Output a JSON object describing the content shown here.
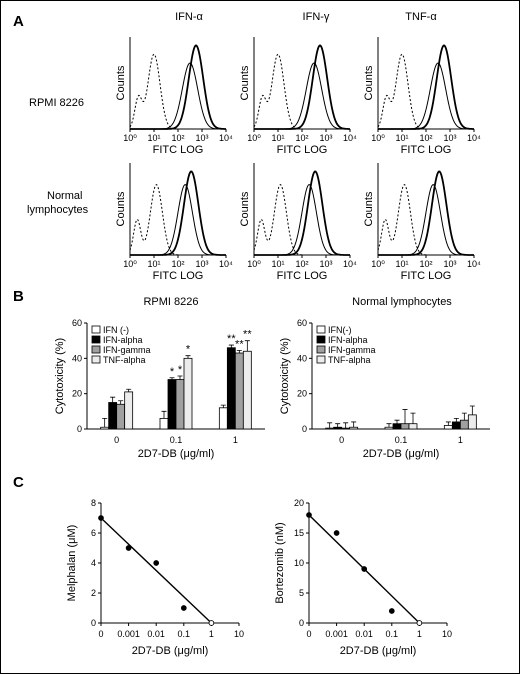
{
  "panels": {
    "a": "A",
    "b": "B",
    "c": "C"
  },
  "histograms": {
    "columns": [
      "IFN-α",
      "IFN-γ",
      "TNF-α"
    ],
    "rows": [
      "RPMI 8226",
      "Normal\nlymphocytes"
    ],
    "ylabel": "Counts",
    "xlabel": "FITC LOG",
    "ticks": [
      "10⁰",
      "10¹",
      "10²",
      "10³",
      "10⁴"
    ]
  },
  "chart_data": [
    {
      "id": "b-left",
      "type": "bar",
      "title": "RPMI 8226",
      "xlabel": "2D7-DB (μg/ml)",
      "ylabel": "Cytotoxicity (%)",
      "ylim": [
        0,
        60
      ],
      "yticks": [
        0,
        20,
        40,
        60
      ],
      "categories": [
        "0",
        "0.1",
        "1"
      ],
      "series": [
        {
          "name": "IFN (-)",
          "color": "#ffffff",
          "values": [
            1,
            6,
            12
          ],
          "errors": [
            5,
            4,
            1.5
          ]
        },
        {
          "name": "IFN-alpha",
          "color": "#000000",
          "values": [
            15,
            28,
            46
          ],
          "errors": [
            3,
            1,
            1.5
          ]
        },
        {
          "name": "IFN-gamma",
          "color": "#a0a0a0",
          "values": [
            14,
            28,
            43
          ],
          "errors": [
            2,
            2,
            1.5
          ]
        },
        {
          "name": "TNF-alpha",
          "color": "#ececec",
          "values": [
            21,
            40,
            44
          ],
          "errors": [
            1.5,
            1.5,
            6
          ]
        }
      ],
      "annotations": [
        {
          "category": "0.1",
          "series": "IFN-alpha",
          "text": "*"
        },
        {
          "category": "0.1",
          "series": "IFN-gamma",
          "text": "*"
        },
        {
          "category": "0.1",
          "series": "TNF-alpha",
          "text": "*"
        },
        {
          "category": "1",
          "series": "IFN-alpha",
          "text": "**"
        },
        {
          "category": "1",
          "series": "IFN-gamma",
          "text": "**"
        },
        {
          "category": "1",
          "series": "TNF-alpha",
          "text": "**"
        }
      ]
    },
    {
      "id": "b-right",
      "type": "bar",
      "title": "Normal lymphocytes",
      "xlabel": "2D7-DB (μg/ml)",
      "ylabel": "Cytotoxicity (%)",
      "ylim": [
        0,
        60
      ],
      "yticks": [
        0,
        20,
        40,
        60
      ],
      "categories": [
        "0",
        "0.1",
        "1"
      ],
      "series": [
        {
          "name": "IFN(-)",
          "color": "#ffffff",
          "values": [
            0.5,
            1,
            2
          ],
          "errors": [
            3,
            2,
            2
          ]
        },
        {
          "name": "IFN-alpha",
          "color": "#000000",
          "values": [
            1,
            3,
            4
          ],
          "errors": [
            2,
            2,
            2
          ]
        },
        {
          "name": "IFN-gamma",
          "color": "#a0a0a0",
          "values": [
            0.5,
            3,
            5
          ],
          "errors": [
            3,
            8,
            4
          ]
        },
        {
          "name": "TNF-alpha",
          "color": "#ececec",
          "values": [
            1,
            3,
            8
          ],
          "errors": [
            3,
            6,
            5
          ]
        }
      ]
    },
    {
      "id": "c-left",
      "type": "scatter",
      "xlabel": "2D7-DB (μg/ml)",
      "ylabel": "Melphalan (μM)",
      "ylim": [
        0,
        8
      ],
      "yticks": [
        0,
        2,
        4,
        6,
        8
      ],
      "xticks": [
        "0",
        "0.001",
        "0.01",
        "0.1",
        "1",
        "10"
      ],
      "points": [
        {
          "x": "0",
          "y": 7
        },
        {
          "x": "0.001",
          "y": 5
        },
        {
          "x": "0.01",
          "y": 4
        },
        {
          "x": "0.1",
          "y": 1
        },
        {
          "x": "1",
          "y": 0
        }
      ],
      "fit": {
        "from": {
          "x": "0",
          "y": 7
        },
        "to": {
          "x": "1",
          "y": 0
        }
      }
    },
    {
      "id": "c-right",
      "type": "scatter",
      "xlabel": "2D7-DB (μg/ml)",
      "ylabel": "Bortezomib (nM)",
      "ylim": [
        0,
        20
      ],
      "yticks": [
        0,
        5,
        10,
        15,
        20
      ],
      "xticks": [
        "0",
        "0.001",
        "0.01",
        "0.1",
        "1",
        "10"
      ],
      "points": [
        {
          "x": "0",
          "y": 18
        },
        {
          "x": "0.001",
          "y": 15
        },
        {
          "x": "0.01",
          "y": 9
        },
        {
          "x": "0.1",
          "y": 2
        },
        {
          "x": "1",
          "y": 0
        }
      ],
      "fit": {
        "from": {
          "x": "0",
          "y": 18
        },
        "to": {
          "x": "1",
          "y": 0
        }
      }
    }
  ]
}
